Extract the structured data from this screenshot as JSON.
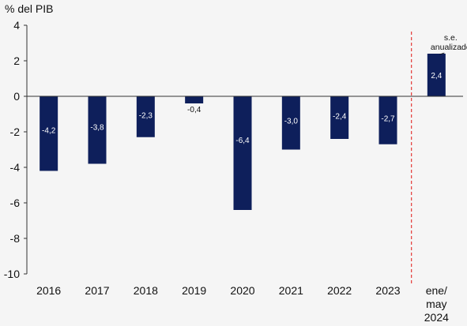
{
  "chart_data": {
    "type": "bar",
    "ylabel": "% del PIB",
    "ylim": [
      -10,
      4
    ],
    "yticks": [
      4,
      2,
      0,
      -2,
      -4,
      -6,
      -8,
      -10
    ],
    "grid": false,
    "categories": [
      [
        "2016"
      ],
      [
        "2017"
      ],
      [
        "2018"
      ],
      [
        "2019"
      ],
      [
        "2020"
      ],
      [
        "2021"
      ],
      [
        "2022"
      ],
      [
        "2023"
      ],
      [
        "ene/",
        "may",
        "2024"
      ]
    ],
    "values": [
      -4.2,
      -3.8,
      -2.3,
      -0.4,
      -6.4,
      -3.0,
      -2.4,
      -2.7,
      2.4
    ],
    "value_labels": [
      "-4,2",
      "-3,8",
      "-2,3",
      "-0,4",
      "-6,4",
      "-3,0",
      "-2,4",
      "-2,7",
      "2,4"
    ],
    "bar_color": "#0e1f5b",
    "separator": {
      "after_category_index": 7,
      "color": "#e53935",
      "style": "dashed"
    },
    "annotation": {
      "lines": [
        "s.e.",
        "anualizado"
      ],
      "target_index": 8
    }
  }
}
